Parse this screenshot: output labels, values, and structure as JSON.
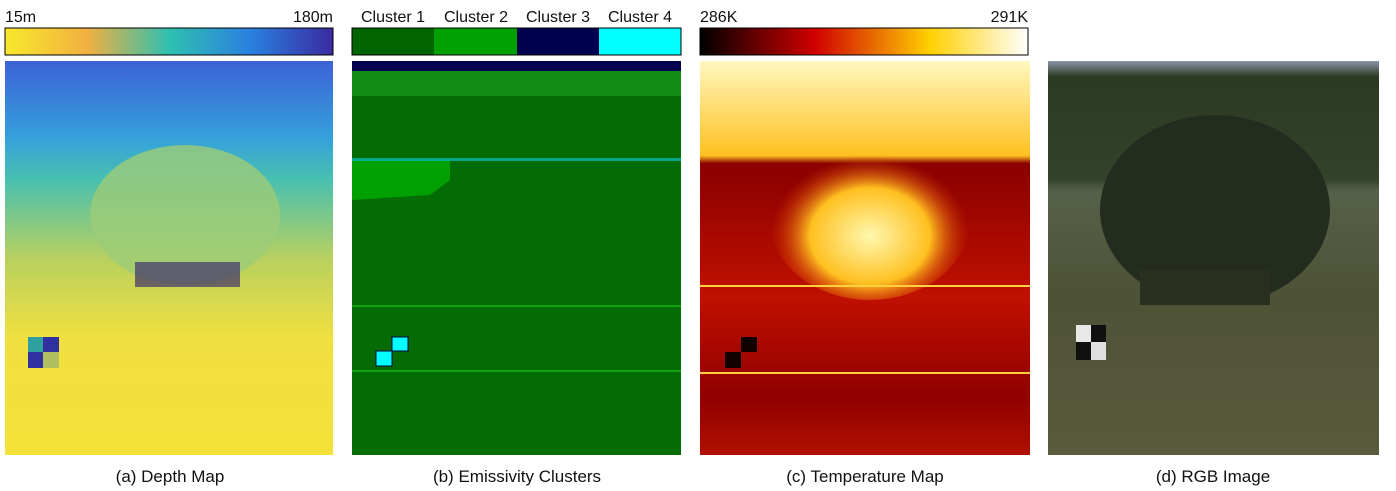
{
  "panels": [
    {
      "caption": "(a) Depth Map",
      "colorbar": {
        "min_label": "15m",
        "max_label": "180m"
      }
    },
    {
      "caption": "(b) Emissivity Clusters",
      "legend": [
        "Cluster 1",
        "Cluster 2",
        "Cluster 3",
        "Cluster 4"
      ]
    },
    {
      "caption": "(c) Temperature Map",
      "colorbar": {
        "min_label": "286K",
        "max_label": "291K"
      }
    },
    {
      "caption": "(d) RGB Image"
    }
  ]
}
